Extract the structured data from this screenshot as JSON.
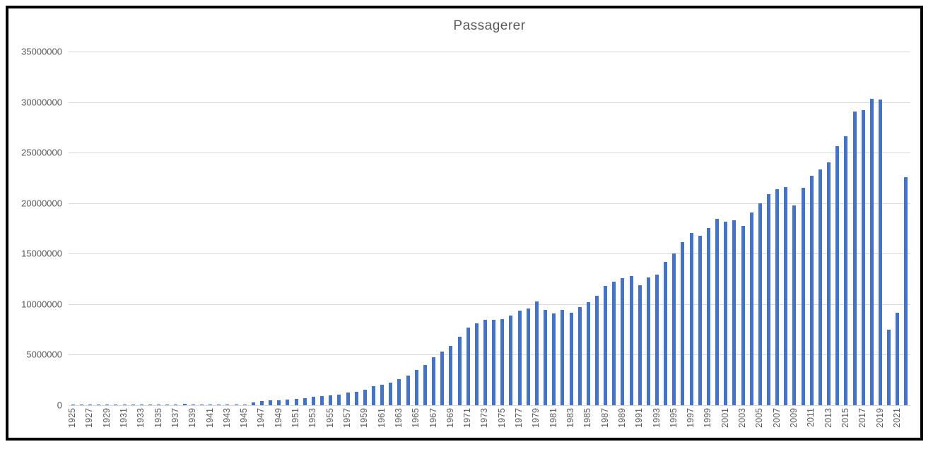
{
  "window": {
    "background_color": "#ffffff",
    "frame_border_color": "#000000"
  },
  "chart_data": {
    "type": "bar",
    "title": "Passagerer",
    "xlabel": "",
    "ylabel": "",
    "legend_position": "none",
    "grid": true,
    "bar_color": "#4472c4",
    "gridline_color": "#d9d9d9",
    "text_color": "#595959",
    "ylim": [
      0,
      35000000
    ],
    "y_tick_interval": 5000000,
    "y_tick_labels_top_to_bottom": [
      "35000000",
      "30000000",
      "25000000",
      "20000000",
      "15000000",
      "10000000",
      "5000000",
      "0"
    ],
    "x_tick_label_step": 2,
    "x_tick_labels_shown": [
      "1925",
      "1927",
      "1929",
      "1931",
      "1933",
      "1935",
      "1937",
      "1939",
      "1941",
      "1943",
      "1945",
      "1947",
      "1949",
      "1951",
      "1953",
      "1955",
      "1957",
      "1959",
      "1961",
      "1963",
      "1965",
      "1967",
      "1969",
      "1971",
      "1973",
      "1975",
      "1977",
      "1979",
      "1981",
      "1983",
      "1985",
      "1987",
      "1989",
      "1991",
      "1993",
      "1995",
      "1997",
      "1999",
      "2001",
      "2003",
      "2005",
      "2007",
      "2009",
      "2011",
      "2013",
      "2015",
      "2017",
      "2019",
      "2021"
    ],
    "categories": [
      1925,
      1926,
      1927,
      1928,
      1929,
      1930,
      1931,
      1932,
      1933,
      1934,
      1935,
      1936,
      1937,
      1938,
      1939,
      1940,
      1941,
      1942,
      1943,
      1944,
      1945,
      1946,
      1947,
      1948,
      1949,
      1950,
      1951,
      1952,
      1953,
      1954,
      1955,
      1956,
      1957,
      1958,
      1959,
      1960,
      1961,
      1962,
      1963,
      1964,
      1965,
      1966,
      1967,
      1968,
      1969,
      1970,
      1971,
      1972,
      1973,
      1974,
      1975,
      1976,
      1977,
      1978,
      1979,
      1980,
      1981,
      1982,
      1983,
      1984,
      1985,
      1986,
      1987,
      1988,
      1989,
      1990,
      1991,
      1992,
      1993,
      1994,
      1995,
      1996,
      1997,
      1998,
      1999,
      2000,
      2001,
      2002,
      2003,
      2004,
      2005,
      2006,
      2007,
      2008,
      2009,
      2010,
      2011,
      2012,
      2013,
      2014,
      2015,
      2016,
      2017,
      2018,
      2019,
      2020,
      2021,
      2022
    ],
    "values": [
      30000,
      40000,
      45000,
      50000,
      55000,
      60000,
      60000,
      65000,
      70000,
      75000,
      80000,
      90000,
      100000,
      110000,
      100000,
      45000,
      45000,
      50000,
      55000,
      50000,
      80000,
      300000,
      430000,
      520000,
      520000,
      570000,
      620000,
      710000,
      820000,
      900000,
      1000000,
      1060000,
      1240000,
      1360000,
      1570000,
      1870000,
      2040000,
      2210000,
      2560000,
      2910000,
      3470000,
      3960000,
      4740000,
      5320000,
      5860000,
      6750000,
      7700000,
      8120000,
      8470000,
      8430000,
      8560000,
      8880000,
      9350000,
      9580000,
      10280000,
      9420000,
      9070000,
      9400000,
      9160000,
      9700000,
      10230000,
      10860000,
      11790000,
      12260000,
      12610000,
      12770000,
      11910000,
      12680000,
      12960000,
      14170000,
      15000000,
      16120000,
      17080000,
      16790000,
      17530000,
      18420000,
      18190000,
      18300000,
      17720000,
      19070000,
      19980000,
      20860000,
      21400000,
      21560000,
      19750000,
      21490000,
      22720000,
      23370000,
      24070000,
      25620000,
      26610000,
      29040000,
      29180000,
      30300000,
      30260000,
      7510000,
      9160000,
      22600000
    ]
  }
}
